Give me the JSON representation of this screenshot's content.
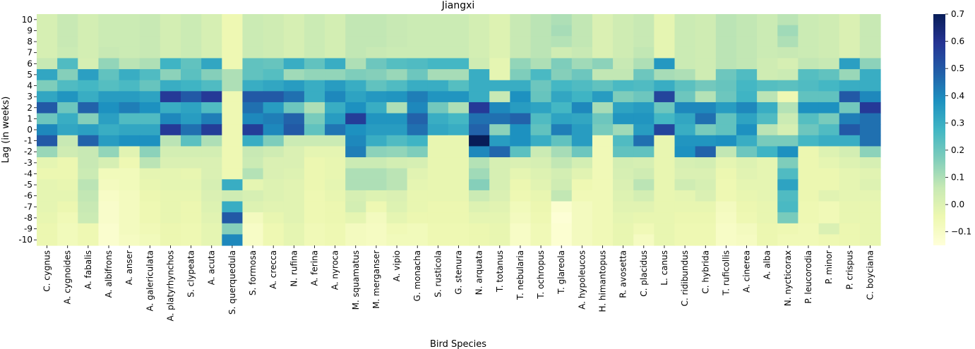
{
  "chart_data": {
    "type": "heatmap",
    "title": "Jiangxi",
    "xlabel": "Bird Species",
    "ylabel": "Lag (in weeks)",
    "colormap": "YlGnBu",
    "vmin": -0.15,
    "vmax": 0.7,
    "colorbar_ticks": [
      0.7,
      0.6,
      0.5,
      0.4,
      0.3,
      0.2,
      0.1,
      0.0,
      -0.1
    ],
    "colorbar_tick_labels": [
      "0.7",
      "0.6",
      "0.5",
      "0.4",
      "0.3",
      "0.2",
      "0.1",
      "0.0",
      "−0.1"
    ],
    "y_labels": [
      "10",
      "9",
      "8",
      "7",
      "6",
      "5",
      "4",
      "3",
      "2",
      "1",
      "0",
      "-1",
      "-2",
      "-3",
      "-4",
      "-5",
      "-6",
      "-7",
      "-8",
      "-9",
      "-10"
    ],
    "x_labels": [
      "C. cygnus",
      "A. cygnoides",
      "A. fabalis",
      "A. albifrons",
      "A. anser",
      "A. galericulata",
      "A. platyrhynchos",
      "S. clypeata",
      "A. acuta",
      "S. querquedula",
      "S. formosa",
      "A. crecca",
      "N. rufina",
      "A. ferina",
      "A. nyroca",
      "M. squamatus",
      "M. merganser",
      "A. vipio",
      "G. monacha",
      "S. rusticola",
      "G. stenura",
      "N. arquata",
      "T. totanus",
      "T. nebularia",
      "T. ochropus",
      "T. glareola",
      "A. hypoleucos",
      "H. himantopus",
      "R. avosetta",
      "C. placidus",
      "L. canus",
      "C. ridibundus",
      "C. hybrida",
      "T. ruficollis",
      "A. cinerea",
      "A. alba",
      "N. nycticorax",
      "P. leucorodia",
      "P. minor",
      "P. crispus",
      "C. boyciana"
    ],
    "values": [
      [
        0.02,
        0.06,
        0.03,
        0.05,
        0.05,
        0.06,
        0.03,
        0.05,
        0.02,
        -0.05,
        0.05,
        0.04,
        0.02,
        0.05,
        0.03,
        0.07,
        0.07,
        0.06,
        0.05,
        0.05,
        0.05,
        0.03,
        0.0,
        0.06,
        0.08,
        0.1,
        0.07,
        0.01,
        0.04,
        0.06,
        -0.02,
        0.05,
        0.04,
        0.08,
        0.07,
        0.05,
        0.08,
        0.05,
        0.04,
        0.01,
        0.06
      ],
      [
        0.02,
        0.06,
        0.03,
        0.05,
        0.05,
        0.06,
        0.03,
        0.05,
        0.02,
        -0.05,
        0.05,
        0.04,
        0.02,
        0.05,
        0.03,
        0.07,
        0.07,
        0.06,
        0.05,
        0.05,
        0.05,
        0.03,
        0.0,
        0.06,
        0.08,
        0.11,
        0.07,
        0.01,
        0.04,
        0.06,
        -0.02,
        0.05,
        0.04,
        0.08,
        0.07,
        0.05,
        0.12,
        0.05,
        0.04,
        0.01,
        0.06
      ],
      [
        0.02,
        0.06,
        0.03,
        0.05,
        0.05,
        0.06,
        0.03,
        0.05,
        0.02,
        -0.05,
        0.05,
        0.04,
        0.02,
        0.05,
        0.03,
        0.07,
        0.07,
        0.06,
        0.05,
        0.05,
        0.05,
        0.03,
        0.0,
        0.06,
        0.08,
        0.09,
        0.07,
        0.01,
        0.04,
        0.06,
        -0.02,
        0.05,
        0.04,
        0.08,
        0.07,
        0.05,
        0.1,
        0.05,
        0.04,
        0.01,
        0.06
      ],
      [
        0.02,
        0.05,
        0.03,
        0.06,
        0.05,
        0.06,
        0.03,
        0.05,
        0.02,
        -0.05,
        0.05,
        0.04,
        0.02,
        0.05,
        0.03,
        0.07,
        0.06,
        0.05,
        0.05,
        0.05,
        0.05,
        0.03,
        0.0,
        0.06,
        0.08,
        0.04,
        0.06,
        0.01,
        0.04,
        0.07,
        -0.02,
        0.05,
        0.04,
        0.08,
        0.07,
        0.05,
        0.06,
        0.05,
        0.04,
        0.01,
        0.06
      ],
      [
        0.06,
        0.25,
        0.02,
        0.14,
        0.08,
        0.1,
        0.28,
        0.22,
        0.32,
        -0.05,
        0.22,
        0.21,
        0.3,
        0.22,
        0.3,
        0.1,
        0.2,
        0.24,
        0.25,
        0.27,
        0.27,
        0.04,
        -0.02,
        0.14,
        0.1,
        0.17,
        0.12,
        0.15,
        0.06,
        0.1,
        0.36,
        0.05,
        0.04,
        0.08,
        0.07,
        0.04,
        0.02,
        0.07,
        0.06,
        0.34,
        0.15
      ],
      [
        0.32,
        0.16,
        0.34,
        0.22,
        0.3,
        0.25,
        0.15,
        0.23,
        0.16,
        0.1,
        0.22,
        0.24,
        0.12,
        0.14,
        0.14,
        0.17,
        0.16,
        0.13,
        0.2,
        0.11,
        0.11,
        0.3,
        -0.02,
        0.17,
        0.26,
        0.16,
        0.2,
        0.07,
        0.07,
        0.2,
        0.11,
        0.1,
        0.04,
        0.2,
        0.25,
        0.04,
        0.05,
        0.24,
        0.22,
        0.13,
        0.3
      ],
      [
        0.17,
        0.25,
        0.27,
        0.24,
        0.26,
        0.21,
        0.3,
        0.28,
        0.25,
        0.1,
        0.3,
        0.32,
        0.35,
        0.3,
        0.35,
        0.3,
        0.22,
        0.25,
        0.3,
        0.3,
        0.24,
        0.3,
        0.3,
        0.3,
        0.2,
        0.27,
        0.25,
        0.22,
        0.26,
        0.25,
        0.3,
        0.23,
        0.19,
        0.21,
        0.27,
        0.24,
        0.23,
        0.25,
        0.27,
        0.3,
        0.3
      ],
      [
        0.32,
        0.37,
        0.3,
        0.35,
        0.35,
        0.33,
        0.58,
        0.5,
        0.58,
        -0.05,
        0.5,
        0.5,
        0.45,
        0.3,
        0.4,
        0.33,
        0.36,
        0.37,
        0.42,
        0.37,
        0.37,
        0.3,
        0.06,
        0.38,
        0.21,
        0.32,
        0.28,
        0.35,
        0.17,
        0.2,
        0.55,
        0.2,
        0.09,
        0.2,
        0.28,
        0.08,
        -0.05,
        0.22,
        0.22,
        0.5,
        0.4
      ],
      [
        0.5,
        0.2,
        0.48,
        0.38,
        0.42,
        0.38,
        0.3,
        0.33,
        0.25,
        -0.05,
        0.45,
        0.35,
        0.2,
        0.1,
        0.3,
        0.38,
        0.3,
        0.1,
        0.4,
        0.19,
        0.1,
        0.58,
        0.4,
        0.35,
        0.33,
        0.27,
        0.4,
        0.11,
        0.33,
        0.35,
        0.2,
        0.4,
        0.4,
        0.35,
        0.4,
        0.3,
        0.09,
        0.38,
        0.38,
        0.19,
        0.58
      ],
      [
        0.2,
        0.3,
        0.16,
        0.34,
        0.25,
        0.25,
        0.4,
        0.35,
        0.42,
        -0.05,
        0.4,
        0.42,
        0.48,
        0.18,
        0.35,
        0.57,
        0.37,
        0.37,
        0.48,
        0.3,
        0.27,
        0.45,
        0.45,
        0.48,
        0.25,
        0.33,
        0.32,
        0.2,
        0.37,
        0.37,
        0.27,
        0.32,
        0.45,
        0.22,
        0.33,
        0.25,
        0.05,
        0.24,
        0.18,
        0.42,
        0.45
      ],
      [
        0.4,
        0.32,
        0.34,
        0.3,
        0.32,
        0.32,
        0.58,
        0.45,
        0.57,
        -0.05,
        0.57,
        0.4,
        0.5,
        0.22,
        0.44,
        0.38,
        0.35,
        0.35,
        0.45,
        0.32,
        0.3,
        0.48,
        0.15,
        0.38,
        0.22,
        0.42,
        0.35,
        0.18,
        0.12,
        0.35,
        0.55,
        0.3,
        0.18,
        0.22,
        0.38,
        0.08,
        0.02,
        0.2,
        0.25,
        0.5,
        0.45
      ],
      [
        0.5,
        0.06,
        0.48,
        0.35,
        0.38,
        0.38,
        0.08,
        0.23,
        0.1,
        -0.05,
        0.3,
        0.17,
        0.05,
        0.05,
        0.05,
        0.4,
        0.3,
        0.25,
        0.28,
        -0.03,
        -0.03,
        0.7,
        0.35,
        0.38,
        0.3,
        0.22,
        0.35,
        -0.06,
        0.25,
        0.45,
        -0.03,
        0.37,
        0.37,
        0.38,
        0.3,
        0.18,
        0.18,
        0.27,
        0.3,
        0.3,
        0.45
      ],
      [
        0.13,
        0.04,
        0.06,
        0.14,
        -0.01,
        0.15,
        0.03,
        0.03,
        0.03,
        -0.05,
        0.06,
        0.04,
        0.01,
        -0.02,
        -0.02,
        0.42,
        0.15,
        0.14,
        0.17,
        -0.03,
        -0.03,
        0.4,
        0.47,
        0.23,
        0.05,
        0.11,
        0.2,
        -0.06,
        0.22,
        0.22,
        -0.03,
        0.38,
        0.48,
        0.07,
        0.2,
        0.28,
        0.38,
        -0.04,
        0.0,
        0.03,
        0.15
      ],
      [
        -0.02,
        -0.04,
        0.06,
        0.02,
        -0.05,
        0.08,
        0.01,
        0.01,
        0.01,
        -0.05,
        0.05,
        0.01,
        0.01,
        -0.04,
        -0.03,
        0.05,
        0.05,
        0.03,
        0.02,
        -0.03,
        -0.03,
        0.09,
        0.02,
        0.01,
        0.02,
        0.07,
        0.03,
        -0.06,
        0.03,
        0.02,
        -0.03,
        0.02,
        0.03,
        -0.02,
        0.0,
        -0.02,
        0.17,
        -0.04,
        -0.02,
        0.0,
        0.02
      ],
      [
        -0.04,
        -0.04,
        0.05,
        -0.07,
        -0.07,
        -0.02,
        -0.02,
        -0.03,
        0.01,
        -0.05,
        0.09,
        0.01,
        0.0,
        -0.04,
        -0.03,
        0.1,
        0.1,
        0.08,
        -0.01,
        -0.03,
        -0.03,
        0.12,
        0.02,
        -0.02,
        0.0,
        0.03,
        -0.01,
        -0.06,
        0.02,
        0.04,
        -0.03,
        0.01,
        0.01,
        -0.04,
        -0.01,
        -0.02,
        0.25,
        -0.04,
        -0.04,
        -0.02,
        -0.01
      ],
      [
        -0.02,
        -0.03,
        0.08,
        -0.08,
        -0.07,
        -0.03,
        -0.02,
        -0.02,
        0.02,
        0.3,
        -0.02,
        0.0,
        -0.01,
        -0.04,
        -0.02,
        0.1,
        0.1,
        0.08,
        -0.02,
        -0.03,
        -0.03,
        0.16,
        0.02,
        -0.04,
        -0.01,
        0.04,
        -0.05,
        -0.06,
        0.01,
        0.08,
        -0.03,
        0.04,
        0.02,
        -0.05,
        -0.02,
        -0.02,
        0.33,
        -0.04,
        -0.04,
        -0.02,
        0.0
      ],
      [
        -0.02,
        -0.02,
        0.07,
        -0.1,
        -0.08,
        -0.04,
        -0.03,
        -0.03,
        0.01,
        0.04,
        0.02,
        0.0,
        -0.01,
        -0.05,
        -0.03,
        0.02,
        0.0,
        0.01,
        -0.03,
        -0.03,
        -0.03,
        0.05,
        0.01,
        -0.05,
        -0.03,
        0.07,
        -0.06,
        -0.06,
        0.0,
        0.03,
        -0.03,
        -0.02,
        0.01,
        -0.05,
        -0.03,
        -0.02,
        0.25,
        -0.04,
        -0.01,
        -0.02,
        -0.02
      ],
      [
        -0.02,
        -0.04,
        0.06,
        -0.11,
        -0.08,
        -0.05,
        -0.03,
        -0.04,
        0.0,
        0.3,
        0.0,
        -0.01,
        -0.01,
        -0.05,
        -0.04,
        0.03,
        -0.05,
        0.0,
        -0.03,
        -0.04,
        -0.04,
        0.0,
        -0.01,
        -0.07,
        -0.04,
        -0.12,
        -0.08,
        -0.06,
        -0.01,
        -0.01,
        -0.03,
        -0.03,
        -0.03,
        -0.08,
        -0.04,
        -0.03,
        0.26,
        -0.05,
        -0.06,
        -0.03,
        -0.03
      ],
      [
        -0.03,
        -0.06,
        0.05,
        -0.11,
        -0.08,
        -0.05,
        -0.03,
        -0.04,
        -0.01,
        0.5,
        -0.08,
        -0.03,
        -0.01,
        -0.05,
        -0.04,
        -0.02,
        -0.08,
        -0.02,
        -0.04,
        -0.04,
        -0.04,
        -0.02,
        -0.02,
        -0.08,
        -0.05,
        -0.14,
        -0.08,
        -0.06,
        -0.02,
        -0.03,
        -0.03,
        -0.04,
        -0.04,
        -0.09,
        -0.05,
        -0.03,
        0.18,
        -0.05,
        -0.06,
        -0.03,
        -0.03
      ],
      [
        -0.04,
        -0.07,
        -0.05,
        -0.12,
        -0.08,
        -0.06,
        -0.04,
        -0.05,
        -0.02,
        0.16,
        -0.1,
        -0.05,
        -0.02,
        -0.06,
        -0.05,
        -0.08,
        -0.09,
        -0.06,
        -0.07,
        -0.05,
        -0.05,
        -0.04,
        -0.03,
        -0.1,
        -0.06,
        -0.13,
        -0.08,
        -0.06,
        -0.03,
        -0.06,
        -0.03,
        -0.05,
        -0.05,
        -0.1,
        -0.08,
        -0.04,
        -0.05,
        -0.06,
        0.01,
        -0.04,
        -0.03
      ],
      [
        -0.04,
        -0.07,
        -0.05,
        -0.12,
        -0.09,
        -0.07,
        -0.04,
        -0.05,
        -0.02,
        0.4,
        -0.1,
        -0.05,
        -0.02,
        -0.06,
        -0.05,
        -0.08,
        -0.09,
        -0.07,
        -0.07,
        -0.05,
        -0.05,
        -0.04,
        -0.03,
        -0.1,
        -0.06,
        -0.13,
        -0.08,
        -0.06,
        -0.03,
        -0.09,
        -0.03,
        -0.05,
        -0.05,
        -0.1,
        -0.09,
        -0.04,
        -0.06,
        -0.06,
        -0.05,
        -0.04,
        -0.03
      ]
    ]
  }
}
